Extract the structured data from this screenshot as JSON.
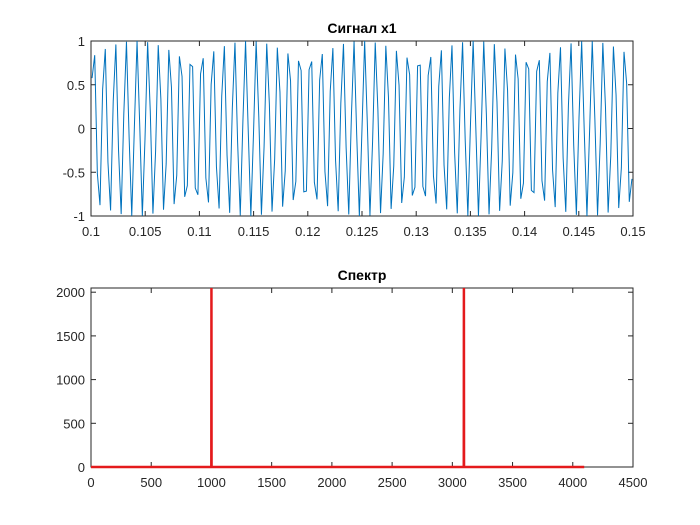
{
  "chart_data": [
    {
      "type": "line",
      "title": "Сигнал x1",
      "xlabel": "",
      "ylabel": "",
      "xlim": [
        0.1,
        0.15
      ],
      "ylim": [
        -1,
        1
      ],
      "xticks": [
        0.1,
        0.105,
        0.11,
        0.115,
        0.12,
        0.125,
        0.13,
        0.135,
        0.14,
        0.145,
        0.15
      ],
      "xtick_labels": [
        "0.1",
        "0.105",
        "0.11",
        "0.115",
        "0.12",
        "0.125",
        "0.13",
        "0.135",
        "0.14",
        "0.145",
        "0.15"
      ],
      "yticks": [
        -1,
        -0.5,
        0,
        0.5,
        1
      ],
      "ytick_labels": [
        "-1",
        "-0.5",
        "0",
        "0.5",
        "1"
      ],
      "grid": false,
      "series": [
        {
          "color": "#0072BD",
          "kind": "sampled sine, 1000 Hz, fs = 4096 Hz",
          "frequency_hz": 1000,
          "sample_rate_hz": 4096,
          "amplitude": 1
        }
      ]
    },
    {
      "type": "line",
      "title": "Спектр",
      "xlabel": "",
      "ylabel": "",
      "xlim": [
        0,
        4500
      ],
      "ylim": [
        0,
        2048
      ],
      "xticks": [
        0,
        500,
        1000,
        1500,
        2000,
        2500,
        3000,
        3500,
        4000,
        4500
      ],
      "xtick_labels": [
        "0",
        "500",
        "1000",
        "1500",
        "2000",
        "2500",
        "3000",
        "3500",
        "4000",
        "4500"
      ],
      "yticks": [
        0,
        500,
        1000,
        1500,
        2000
      ],
      "ytick_labels": [
        "0",
        "500",
        "1000",
        "1500",
        "2000"
      ],
      "grid": false,
      "series": [
        {
          "color": "#E41A1C",
          "x": [
            0,
            999,
            1000,
            1001,
            3095,
            3096,
            3097,
            4095
          ],
          "y": [
            0,
            0,
            2048,
            0,
            0,
            2048,
            0,
            0
          ]
        }
      ]
    }
  ]
}
